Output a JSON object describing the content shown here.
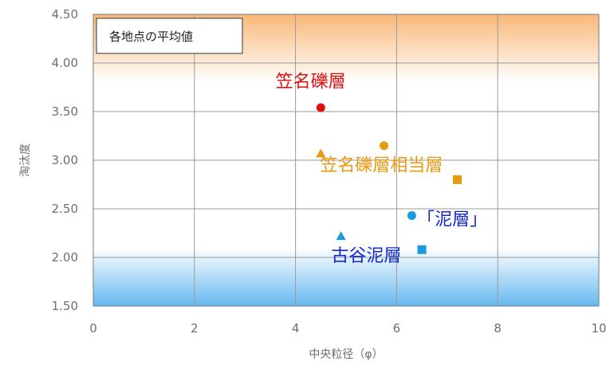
{
  "chart_data": {
    "type": "scatter",
    "title": "",
    "xlabel": "中央粒径（φ）",
    "ylabel": "淘汰度",
    "xlim": [
      0,
      10
    ],
    "ylim": [
      1.5,
      4.5
    ],
    "x_ticks": [
      "0",
      "2",
      "4",
      "6",
      "8",
      "10"
    ],
    "y_ticks": [
      "1.50",
      "2.00",
      "2.50",
      "3.00",
      "3.50",
      "4.00",
      "4.50"
    ],
    "grid": true,
    "background": {
      "top_band": {
        "from": 3.8,
        "to": 4.5,
        "color_top": "#f8b878",
        "color_bottom": "#ffffff"
      },
      "bottom_band": {
        "from": 1.5,
        "to": 2.1,
        "color_top": "#ffffff",
        "color_bottom": "#66b8f0"
      }
    },
    "legend_box": {
      "text": "各地点の平均値",
      "placement": "top-left"
    },
    "series": [
      {
        "name": "笠名礫層",
        "color": "#e01010",
        "points": [
          {
            "x": 4.5,
            "y": 3.54,
            "marker": "circle"
          }
        ]
      },
      {
        "name": "笠名礫層相当層",
        "color": "#e89a10",
        "points": [
          {
            "x": 4.5,
            "y": 3.07,
            "marker": "triangle"
          },
          {
            "x": 5.75,
            "y": 3.15,
            "marker": "circle"
          },
          {
            "x": 7.2,
            "y": 2.8,
            "marker": "square"
          }
        ]
      },
      {
        "name": "「泥層」",
        "color": "#1a9be0",
        "points": [
          {
            "x": 6.3,
            "y": 2.43,
            "marker": "circle"
          }
        ]
      },
      {
        "name": "古谷泥層",
        "color": "#1a9be0",
        "points": [
          {
            "x": 4.9,
            "y": 2.22,
            "marker": "triangle"
          },
          {
            "x": 6.5,
            "y": 2.08,
            "marker": "square"
          }
        ]
      }
    ],
    "annotations": [
      {
        "text": "笠名礫層",
        "color": "#e01010",
        "x": 4.3,
        "y": 3.75
      },
      {
        "text": "笠名礫層相当層",
        "color": "#e89a10",
        "x": 5.7,
        "y": 2.89
      },
      {
        "text": "「泥層」",
        "color": "#1428d0",
        "x": 7.1,
        "y": 2.33
      },
      {
        "text": "古谷泥層",
        "color": "#1428d0",
        "x": 5.4,
        "y": 1.96
      }
    ]
  }
}
